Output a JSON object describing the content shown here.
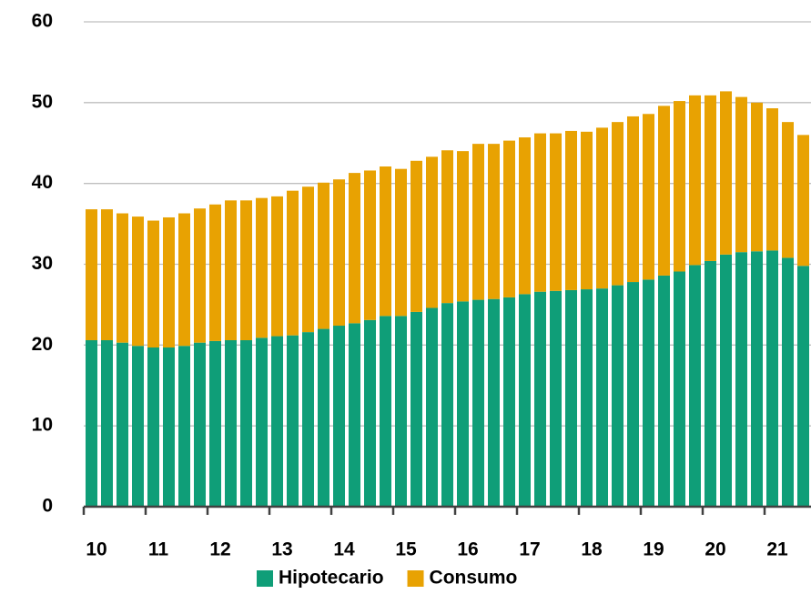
{
  "chart_data": {
    "type": "stacked_bar",
    "categories": [
      "10",
      null,
      null,
      null,
      "11",
      null,
      null,
      null,
      "12",
      null,
      null,
      null,
      "13",
      null,
      null,
      null,
      "14",
      null,
      null,
      null,
      "15",
      null,
      null,
      null,
      "16",
      null,
      null,
      null,
      "17",
      null,
      null,
      null,
      "18",
      null,
      null,
      null,
      "19",
      null,
      null,
      null,
      "20",
      null,
      null,
      null,
      "21",
      null,
      null
    ],
    "series": [
      {
        "name": "Hipotecario",
        "color": "#0f9e78",
        "values": [
          20.6,
          20.6,
          20.3,
          19.9,
          19.7,
          19.7,
          19.9,
          20.3,
          20.5,
          20.6,
          20.6,
          20.9,
          21.1,
          21.2,
          21.6,
          22.0,
          22.4,
          22.7,
          23.1,
          23.6,
          23.6,
          24.1,
          24.6,
          25.2,
          25.4,
          25.6,
          25.7,
          25.9,
          26.3,
          26.6,
          26.7,
          26.8,
          26.9,
          27.0,
          27.4,
          27.8,
          28.1,
          28.6,
          29.1,
          29.9,
          30.4,
          31.2,
          31.5,
          31.6,
          31.7,
          30.8,
          29.8
        ]
      },
      {
        "name": "Consumo",
        "color": "#e8a202",
        "values": [
          16.2,
          16.2,
          16.0,
          16.0,
          15.7,
          16.1,
          16.4,
          16.6,
          16.9,
          17.3,
          17.3,
          17.3,
          17.3,
          17.9,
          18.0,
          18.1,
          18.1,
          18.6,
          18.5,
          18.5,
          18.2,
          18.7,
          18.7,
          18.9,
          18.6,
          19.3,
          19.2,
          19.4,
          19.4,
          19.6,
          19.5,
          19.7,
          19.5,
          19.9,
          20.2,
          20.5,
          20.5,
          21.0,
          21.1,
          21.0,
          20.5,
          20.2,
          19.2,
          18.4,
          17.6,
          16.8,
          16.2
        ]
      }
    ],
    "ylim": [
      0,
      60
    ],
    "yticks": [
      0,
      10,
      20,
      30,
      40,
      50,
      60
    ],
    "grid": true,
    "legend": "bottom"
  }
}
